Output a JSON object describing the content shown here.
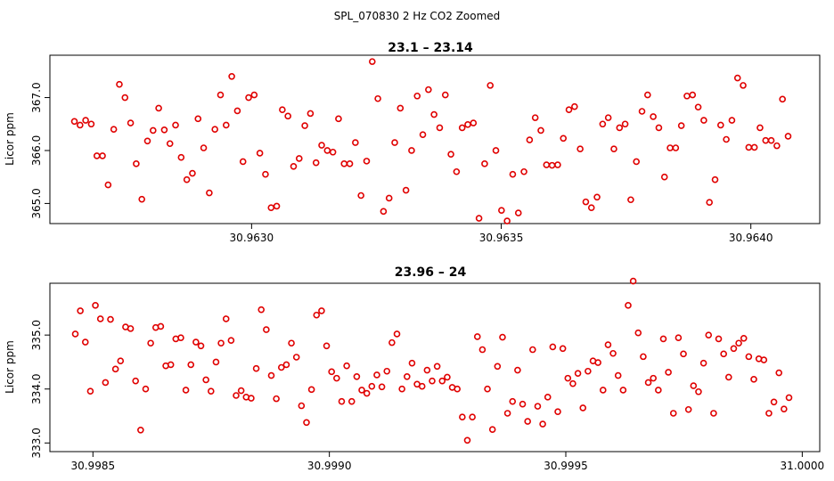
{
  "main_title": "SPL_070830  2 Hz CO2 Zoomed",
  "colors": {
    "point": "#e00000",
    "axis": "#000000",
    "text": "#000000"
  },
  "chart_data": [
    {
      "type": "scatter",
      "title": "23.1 – 23.14",
      "xlabel": "",
      "ylabel": "Licor ppm",
      "xlim": [
        30.962596,
        30.964138
      ],
      "ylim": [
        364.62,
        367.8
      ],
      "xticks": [
        30.963,
        30.9635,
        30.964
      ],
      "xtick_labels": [
        "30.9630",
        "30.9635",
        "30.9640"
      ],
      "yticks": [
        365,
        366,
        367
      ],
      "ytick_labels": [
        "365.0",
        "366.0",
        "367.0"
      ],
      "y": [
        366.55,
        366.48,
        366.57,
        366.5,
        365.9,
        365.9,
        365.35,
        366.4,
        367.25,
        367.0,
        366.52,
        365.75,
        365.08,
        366.18,
        366.38,
        366.8,
        366.39,
        366.13,
        366.48,
        365.87,
        365.45,
        365.57,
        366.6,
        366.05,
        365.2,
        366.4,
        367.05,
        366.48,
        367.4,
        366.75,
        365.79,
        367.0,
        367.05,
        365.95,
        365.55,
        364.92,
        364.95,
        366.77,
        366.65,
        365.7,
        365.85,
        366.47,
        366.7,
        365.77,
        366.1,
        366.0,
        365.97,
        366.6,
        365.75,
        365.75,
        366.15,
        365.15,
        365.8,
        367.68,
        366.98,
        364.85,
        365.1,
        366.15,
        366.8,
        365.25,
        366.0,
        367.03,
        366.3,
        367.15,
        366.68,
        366.43,
        367.05,
        365.93,
        365.6,
        366.43,
        366.49,
        366.52,
        364.72,
        365.75,
        367.23,
        366.0,
        364.87,
        364.67,
        365.55,
        364.82,
        365.6,
        366.2,
        366.62,
        366.38,
        365.73,
        365.72,
        365.73,
        366.23,
        366.77,
        366.83,
        366.03,
        365.03,
        364.92,
        365.12,
        366.5,
        366.62,
        366.03,
        366.43,
        366.5,
        365.07,
        365.79,
        366.74,
        367.05,
        366.64,
        366.43,
        365.5,
        366.05,
        366.05,
        366.47,
        367.03,
        367.05,
        366.82,
        366.57,
        365.02,
        365.45,
        366.48,
        366.21,
        366.57,
        367.37,
        367.23,
        366.06,
        366.06,
        366.43,
        366.19,
        366.19,
        366.09,
        366.97,
        366.27
      ]
    },
    {
      "type": "scatter",
      "title": "23.96 – 24",
      "xlabel": "",
      "ylabel": "Licor ppm",
      "xlim": [
        30.998409,
        31.000037
      ],
      "ylim": [
        332.84,
        335.96
      ],
      "xticks": [
        30.9985,
        30.999,
        30.9995,
        31.0
      ],
      "xtick_labels": [
        "30.9985",
        "30.9990",
        "30.9995",
        "31.0000"
      ],
      "yticks": [
        333,
        334,
        335
      ],
      "ytick_labels": [
        "333.0",
        "334.0",
        "335.0"
      ],
      "y": [
        335.02,
        335.45,
        334.87,
        333.96,
        335.55,
        335.3,
        334.12,
        335.29,
        334.37,
        334.52,
        335.15,
        335.12,
        334.15,
        333.24,
        334.0,
        334.85,
        335.14,
        335.16,
        334.43,
        334.45,
        334.93,
        334.95,
        333.98,
        334.45,
        334.87,
        334.8,
        334.17,
        333.96,
        334.5,
        334.85,
        335.3,
        334.9,
        333.88,
        333.97,
        333.85,
        333.83,
        334.38,
        335.47,
        335.1,
        334.25,
        333.82,
        334.4,
        334.45,
        334.85,
        334.59,
        333.69,
        333.38,
        333.99,
        335.37,
        335.45,
        334.8,
        334.32,
        334.2,
        333.77,
        334.43,
        333.77,
        334.23,
        333.98,
        333.92,
        334.05,
        334.26,
        334.04,
        334.33,
        334.86,
        335.02,
        334.0,
        334.23,
        334.48,
        334.09,
        334.05,
        334.35,
        334.15,
        334.42,
        334.15,
        334.22,
        334.03,
        334.0,
        333.48,
        333.05,
        333.48,
        334.97,
        334.73,
        334.0,
        333.25,
        334.42,
        334.96,
        333.55,
        333.77,
        334.35,
        333.72,
        333.4,
        334.73,
        333.68,
        333.35,
        333.85,
        334.78,
        333.58,
        334.75,
        334.2,
        334.1,
        334.29,
        333.65,
        334.33,
        334.52,
        334.49,
        333.98,
        334.82,
        334.66,
        334.25,
        333.98,
        335.55,
        336.0,
        335.04,
        334.6,
        334.12,
        334.2,
        333.98,
        334.93,
        334.31,
        333.55,
        334.95,
        334.65,
        333.62,
        334.06,
        333.95,
        334.48,
        335.0,
        333.55,
        334.93,
        334.65,
        334.22,
        334.75,
        334.85,
        334.94,
        334.6,
        334.18,
        334.56,
        334.54,
        333.55,
        333.76,
        334.3,
        333.63,
        333.84
      ]
    }
  ]
}
